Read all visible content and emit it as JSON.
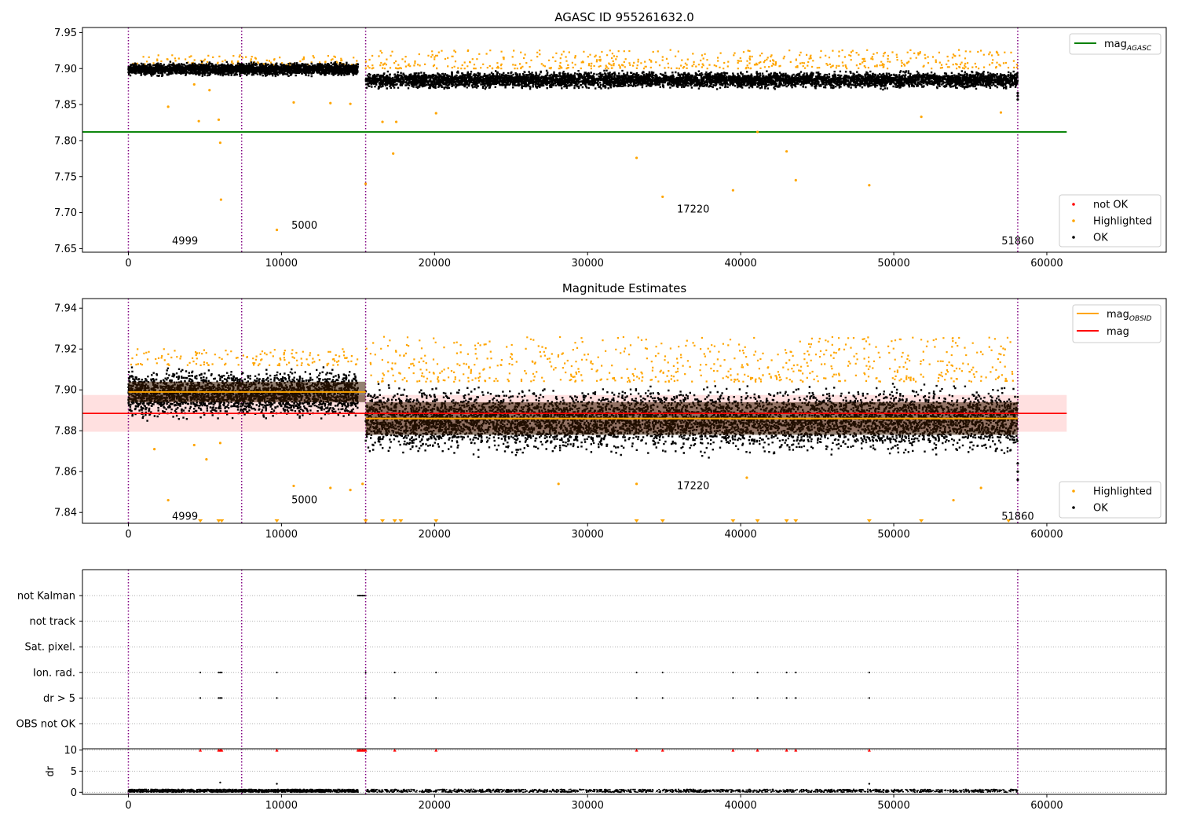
{
  "colors": {
    "not_ok": "#ff0000",
    "highlighted": "#ffa500",
    "ok": "#000000",
    "mag_agasc": "#008000",
    "mag_obsid": "#ffa500",
    "mag": "#ff0000",
    "vline": "#800080"
  },
  "chart_data": [
    {
      "type": "scatter",
      "title": "AGASC ID 955261632.0",
      "xlabel": "",
      "ylabel": "",
      "xlim": [
        -3000,
        67800
      ],
      "ylim": [
        7.645,
        7.957
      ],
      "x_ticks": [
        "0",
        "10000",
        "20000",
        "30000",
        "40000",
        "50000",
        "60000"
      ],
      "x_tick_values": [
        0,
        10000,
        20000,
        30000,
        40000,
        50000,
        60000
      ],
      "y_ticks": [
        "7.65",
        "7.70",
        "7.75",
        "7.80",
        "7.85",
        "7.90",
        "7.95"
      ],
      "y_tick_values": [
        7.65,
        7.7,
        7.75,
        7.8,
        7.85,
        7.9,
        7.95
      ],
      "grid": false,
      "obs_boundaries": [
        0,
        7400,
        15500,
        58100
      ],
      "obs_labels": [
        {
          "x": 3700,
          "y": 7.656,
          "text": "4999"
        },
        {
          "x": 11500,
          "y": 7.678,
          "text": "5000"
        },
        {
          "x": 36900,
          "y": 7.7,
          "text": "17220"
        },
        {
          "x": 58100,
          "y": 7.656,
          "text": "51860"
        }
      ],
      "reference_line": {
        "name": "mag",
        "subscript": "AGASC",
        "y": 7.812,
        "x_range": [
          -3000,
          61300
        ]
      },
      "ok_bands": [
        {
          "x_range": [
            0,
            15000
          ],
          "y_range": [
            7.888,
            7.91
          ]
        },
        {
          "x_range": [
            15500,
            58100
          ],
          "y_range": [
            7.87,
            7.898
          ]
        }
      ],
      "highlighted_points": [
        [
          2600,
          7.847
        ],
        [
          4600,
          7.827
        ],
        [
          5900,
          7.829
        ],
        [
          6000,
          7.797
        ],
        [
          6050,
          7.718
        ],
        [
          9700,
          7.676
        ],
        [
          15500,
          7.74
        ],
        [
          16600,
          7.826
        ],
        [
          17300,
          7.782
        ],
        [
          17500,
          7.826
        ],
        [
          20100,
          7.838
        ],
        [
          33200,
          7.776
        ],
        [
          34900,
          7.722
        ],
        [
          39500,
          7.731
        ],
        [
          41100,
          7.812
        ],
        [
          43000,
          7.785
        ],
        [
          43600,
          7.745
        ],
        [
          48400,
          7.738
        ],
        [
          51800,
          7.833
        ],
        [
          57000,
          7.839
        ],
        [
          4300,
          7.878
        ],
        [
          5300,
          7.87
        ],
        [
          10800,
          7.853
        ],
        [
          13200,
          7.852
        ],
        [
          14500,
          7.851
        ]
      ],
      "legend_upper": {
        "placement": "upper-right",
        "entries": [
          "mag"
        ],
        "subscript": "AGASC"
      },
      "legend_lower": {
        "placement": "lower-right",
        "entries": [
          "not OK",
          "Highlighted",
          "OK"
        ]
      }
    },
    {
      "type": "scatter",
      "title": "Magnitude Estimates",
      "xlabel": "",
      "ylabel": "",
      "xlim": [
        -3000,
        67800
      ],
      "ylim": [
        7.8347,
        7.9447
      ],
      "x_ticks": [
        "0",
        "10000",
        "20000",
        "30000",
        "40000",
        "50000",
        "60000"
      ],
      "x_tick_values": [
        0,
        10000,
        20000,
        30000,
        40000,
        50000,
        60000
      ],
      "y_ticks": [
        "7.84",
        "7.86",
        "7.88",
        "7.90",
        "7.92",
        "7.94"
      ],
      "y_tick_values": [
        7.84,
        7.86,
        7.88,
        7.9,
        7.92,
        7.94
      ],
      "grid": false,
      "obs_boundaries": [
        0,
        7400,
        15500,
        58100
      ],
      "obs_labels": [
        {
          "x": 3700,
          "y": 7.838,
          "text": "4999"
        },
        {
          "x": 11500,
          "y": 7.846,
          "text": "5000"
        },
        {
          "x": 36900,
          "y": 7.853,
          "text": "17220"
        },
        {
          "x": 58100,
          "y": 7.838,
          "text": "51860"
        }
      ],
      "mag_line": {
        "name": "mag",
        "y": 7.8885,
        "band": [
          7.8795,
          7.8975
        ],
        "x_range": [
          -3000,
          61300
        ]
      },
      "mag_obsid_segments": [
        {
          "x_range": [
            0,
            15500
          ],
          "y": 7.899
        },
        {
          "x_range": [
            15500,
            58100
          ],
          "y": 7.886
        }
      ],
      "ok_bands": [
        {
          "x_range": [
            0,
            15000
          ],
          "y_range": [
            7.884,
            7.912
          ]
        },
        {
          "x_range": [
            15500,
            58100
          ],
          "y_range": [
            7.866,
            7.904
          ]
        }
      ],
      "clipped_markers_x": [
        4700,
        5900,
        6100,
        9700,
        15500,
        16600,
        17400,
        17800,
        20100,
        33200,
        34900,
        39500,
        41100,
        43000,
        43600,
        48400,
        51800,
        57500
      ],
      "highlighted_points": [
        [
          2600,
          7.846
        ],
        [
          10800,
          7.853
        ],
        [
          13200,
          7.852
        ],
        [
          14500,
          7.851
        ],
        [
          15300,
          7.854
        ],
        [
          28100,
          7.854
        ],
        [
          33200,
          7.854
        ],
        [
          40400,
          7.857
        ],
        [
          53900,
          7.846
        ],
        [
          55700,
          7.852
        ],
        [
          4300,
          7.873
        ],
        [
          5100,
          7.866
        ],
        [
          6000,
          7.874
        ],
        [
          1700,
          7.871
        ]
      ],
      "legend_upper": {
        "placement": "upper-right",
        "entries": [
          "mag",
          "mag"
        ],
        "subscript": "OBSID"
      },
      "legend_lower": {
        "placement": "lower-right",
        "entries": [
          "Highlighted",
          "OK"
        ]
      }
    },
    {
      "type": "scatter",
      "title": "",
      "xlim": [
        -3000,
        67800
      ],
      "x_ticks": [
        "0",
        "10000",
        "20000",
        "30000",
        "40000",
        "50000",
        "60000"
      ],
      "x_tick_values": [
        0,
        10000,
        20000,
        30000,
        40000,
        50000,
        60000
      ],
      "flags": [
        "not Kalman",
        "not track",
        "Sat. pixel.",
        "Ion. rad.",
        "dr > 5",
        "OBS not OK"
      ],
      "flag_points": {
        "not Kalman": [
          15000,
          15100,
          15200,
          15300,
          15400,
          15500
        ],
        "not track": [],
        "Sat. pixel.": [],
        "Ion. rad.": [
          4700,
          5900,
          6000,
          6100,
          9700,
          15500,
          17400,
          20100,
          33200,
          34900,
          39500,
          41100,
          43000,
          43600,
          48400
        ],
        "dr > 5": [
          4700,
          5900,
          6000,
          6100,
          9700,
          15500,
          17400,
          20100,
          33200,
          34900,
          39500,
          41100,
          43000,
          43600,
          48400
        ],
        "OBS not OK": []
      },
      "obs_boundaries": [
        0,
        7400,
        15500,
        58100
      ],
      "dr_panel": {
        "ylabel": "dr",
        "ylim": [
          -0.5,
          10.3
        ],
        "y_ticks": [
          "0",
          "5",
          "10"
        ],
        "y_tick_values": [
          0,
          5,
          10
        ],
        "clipped_at_10_x": [
          4700,
          5900,
          6000,
          6100,
          9700,
          15000,
          15100,
          15200,
          15300,
          15400,
          15500,
          17400,
          20100,
          33200,
          34900,
          39500,
          41100,
          43000,
          43600,
          48400
        ],
        "elevated_points": [
          [
            6000,
            2.3
          ],
          [
            9700,
            2.0
          ],
          [
            48400,
            2.0
          ]
        ]
      }
    }
  ]
}
